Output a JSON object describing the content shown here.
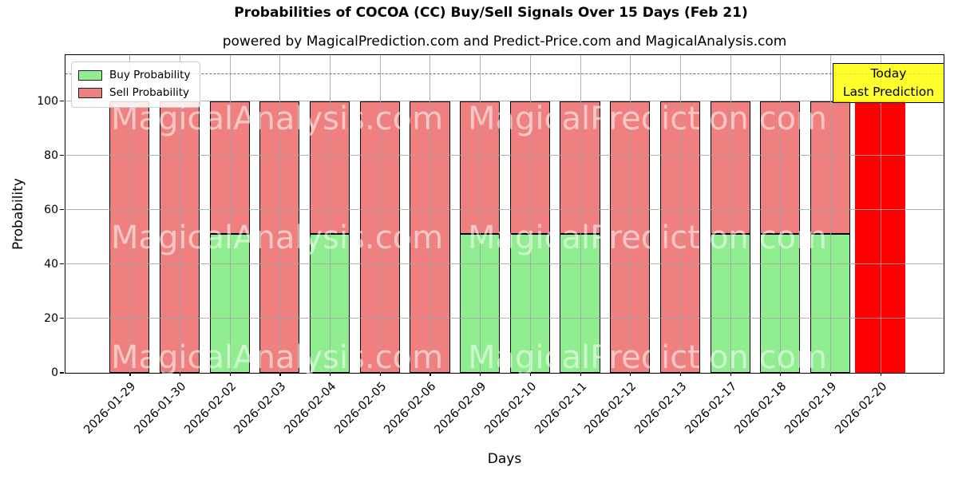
{
  "chart_data": {
    "type": "bar",
    "stacked": true,
    "title": "Probabilities of COCOA (CC) Buy/Sell Signals Over 15 Days (Feb 21)",
    "subtitle": "powered by MagicalPrediction.com and Predict-Price.com and MagicalAnalysis.com",
    "xlabel": "Days",
    "ylabel": "Probability",
    "ylim": [
      0,
      116.6
    ],
    "yticks": [
      0,
      20,
      40,
      60,
      80,
      100
    ],
    "grid": true,
    "dashed_line_y": 110,
    "categories": [
      "2026-01-29",
      "2026-01-30",
      "2026-02-02",
      "2026-02-03",
      "2026-02-04",
      "2026-02-05",
      "2026-02-06",
      "2026-02-09",
      "2026-02-10",
      "2026-02-11",
      "2026-02-12",
      "2026-02-13",
      "2026-02-17",
      "2026-02-18",
      "2026-02-19",
      "2026-02-20"
    ],
    "series": [
      {
        "name": "Buy Probability",
        "color": "#90EE90",
        "values": [
          0,
          0,
          51,
          0,
          51,
          0,
          0,
          51,
          51,
          51,
          0,
          0,
          51,
          51,
          51,
          0
        ]
      },
      {
        "name": "Sell Probability",
        "color": "#F08080",
        "values": [
          100,
          100,
          49,
          100,
          49,
          100,
          100,
          49,
          49,
          49,
          100,
          100,
          49,
          49,
          49,
          0
        ]
      }
    ],
    "today_bar": {
      "date": "2026-02-20",
      "value": 100,
      "color": "#FF0000"
    },
    "legend": {
      "position": "upper left",
      "entries": [
        {
          "label": "Buy Probability",
          "color": "#90EE90"
        },
        {
          "label": "Sell Probability",
          "color": "#F08080"
        }
      ]
    },
    "annotation": {
      "lines": [
        "Today",
        "Last Prediction"
      ],
      "bg": "#FFFF00",
      "border": "#000000"
    },
    "watermarks": [
      "MagicalAnalysis.com",
      "MagicalPrediction.com"
    ],
    "colors": {
      "axis": "#000000",
      "gridline": "#a5a5a5",
      "bar_edge": "#000000",
      "dashed_line": "#6e6e6e"
    }
  }
}
